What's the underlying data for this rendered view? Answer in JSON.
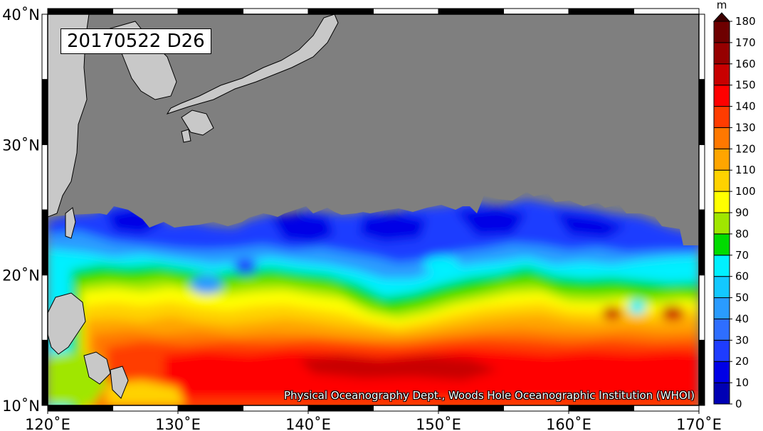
{
  "map": {
    "title": "20170522 D26",
    "credit": "Physical Oceanography Dept., Woods Hole Oceanographic Institution (WHOI)",
    "lon_range": [
      120,
      170
    ],
    "lat_range": [
      10,
      40
    ],
    "lon_ticks": [
      {
        "value": 120,
        "label": "120˚E"
      },
      {
        "value": 130,
        "label": "130˚E"
      },
      {
        "value": 140,
        "label": "140˚E"
      },
      {
        "value": 150,
        "label": "150˚E"
      },
      {
        "value": 160,
        "label": "160˚E"
      },
      {
        "value": 170,
        "label": "170˚E"
      }
    ],
    "lat_ticks": [
      {
        "value": 10,
        "label": "10˚N"
      },
      {
        "value": 20,
        "label": "20˚N"
      },
      {
        "value": 30,
        "label": "30˚N"
      },
      {
        "value": 40,
        "label": "40˚N"
      }
    ],
    "land_color": "#c8c8c8",
    "nodata_color": "#7f7f7f"
  },
  "colorbar": {
    "unit": "m",
    "levels": [
      0,
      10,
      20,
      30,
      40,
      50,
      60,
      70,
      80,
      90,
      100,
      110,
      120,
      130,
      140,
      150,
      160,
      170,
      180
    ],
    "labels": [
      "0",
      "10",
      "20",
      "30",
      "40",
      "50",
      "60",
      "70",
      "80",
      "90",
      "100",
      "110",
      "120",
      "130",
      "140",
      "150",
      "160",
      "170",
      "180"
    ],
    "colors": [
      "#000080",
      "#0000b4",
      "#0000e6",
      "#1e3cff",
      "#2e6eff",
      "#2a9bff",
      "#13c8ff",
      "#00f0ff",
      "#00dc00",
      "#a0e600",
      "#ffff00",
      "#ffd200",
      "#ffa500",
      "#ff7800",
      "#ff3c00",
      "#ff0000",
      "#c80000",
      "#960000",
      "#6e0000",
      "#3c0000"
    ]
  }
}
